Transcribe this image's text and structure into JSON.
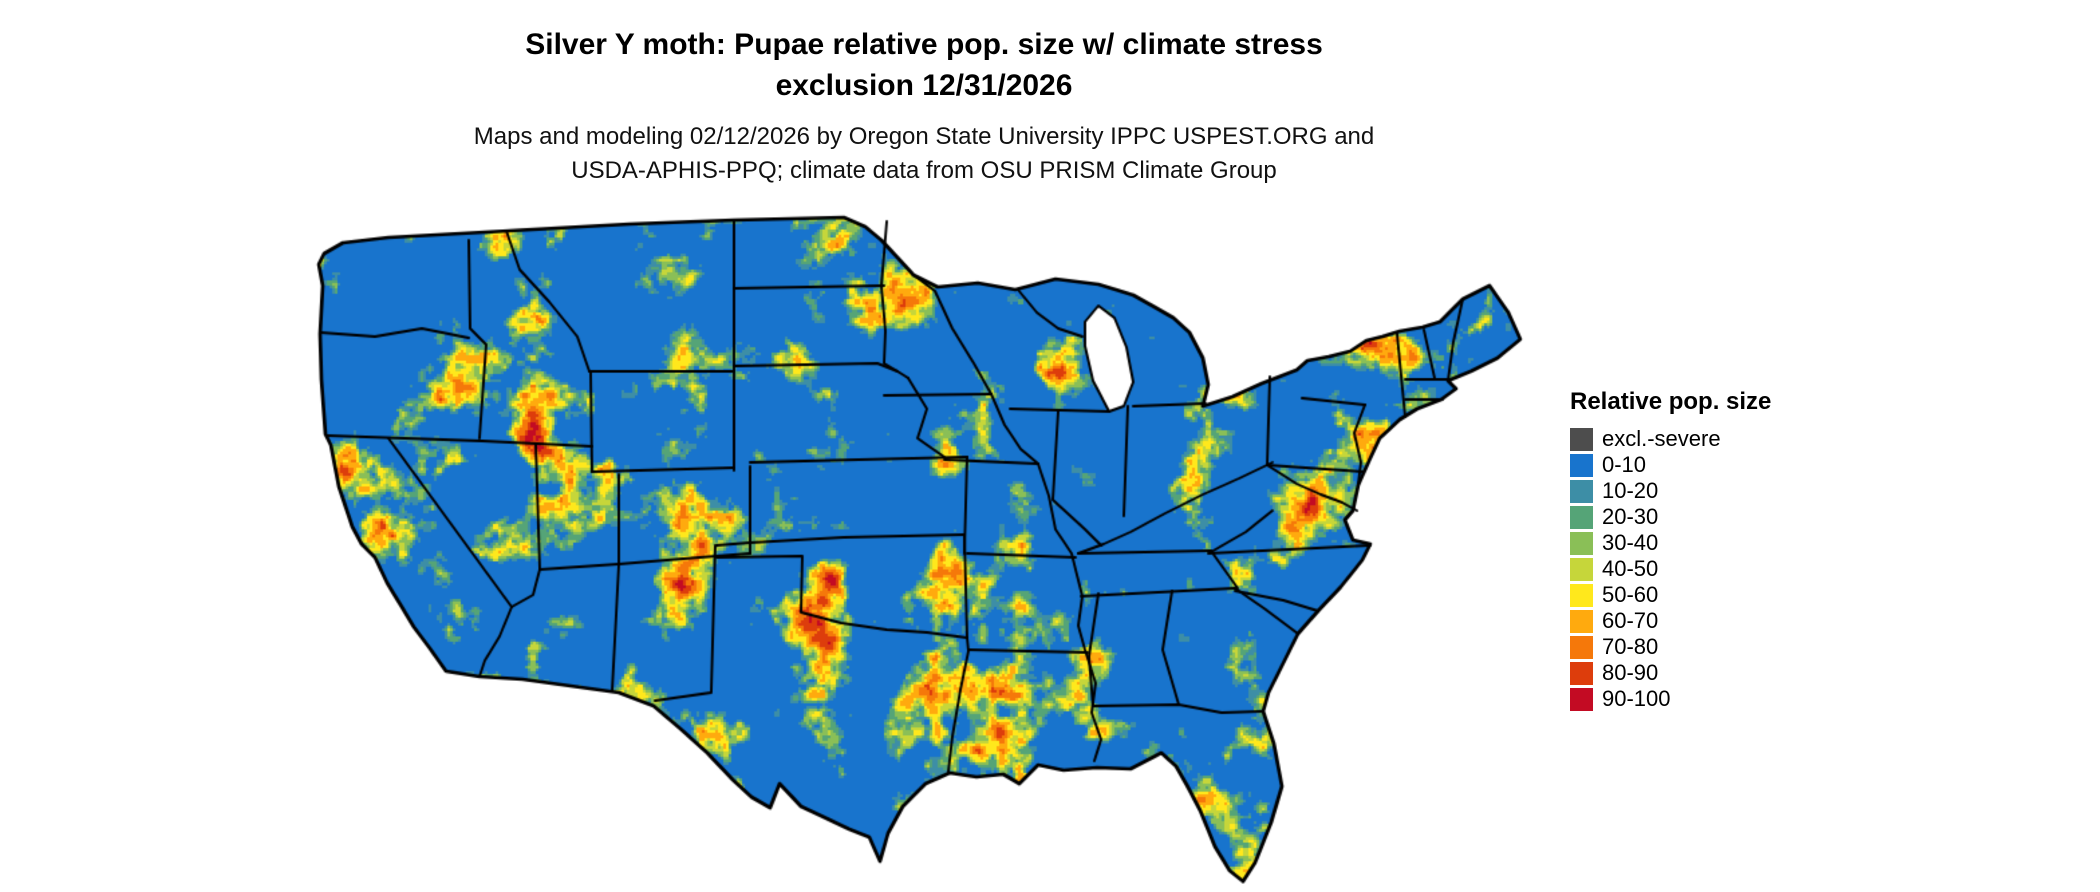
{
  "title": {
    "line1": "Silver Y moth: Pupae relative pop. size w/ climate stress",
    "line2": "exclusion 12/31/2026"
  },
  "subtitle": {
    "line1": "Maps and modeling 02/12/2026 by Oregon State University IPPC USPEST.ORG and",
    "line2": "USDA-APHIS-PPQ; climate data from OSU PRISM Climate Group"
  },
  "legend": {
    "title": "Relative pop. size",
    "items": [
      {
        "label": "excl.-severe",
        "color": "#4d4d4d"
      },
      {
        "label": "0-10",
        "color": "#1874cd"
      },
      {
        "label": "10-20",
        "color": "#3d8ea6"
      },
      {
        "label": "20-30",
        "color": "#55a477"
      },
      {
        "label": "30-40",
        "color": "#8abf57"
      },
      {
        "label": "40-50",
        "color": "#c6d63a"
      },
      {
        "label": "50-60",
        "color": "#ffe81c"
      },
      {
        "label": "60-70",
        "color": "#ffaa0e"
      },
      {
        "label": "70-80",
        "color": "#f5780a"
      },
      {
        "label": "80-90",
        "color": "#dd3d0c"
      },
      {
        "label": "90-100",
        "color": "#c30b23"
      }
    ]
  },
  "map": {
    "region": "Continental United States",
    "base_color": "#1874cd",
    "boundary_color": "#000000",
    "background_color": "#ffffff"
  }
}
